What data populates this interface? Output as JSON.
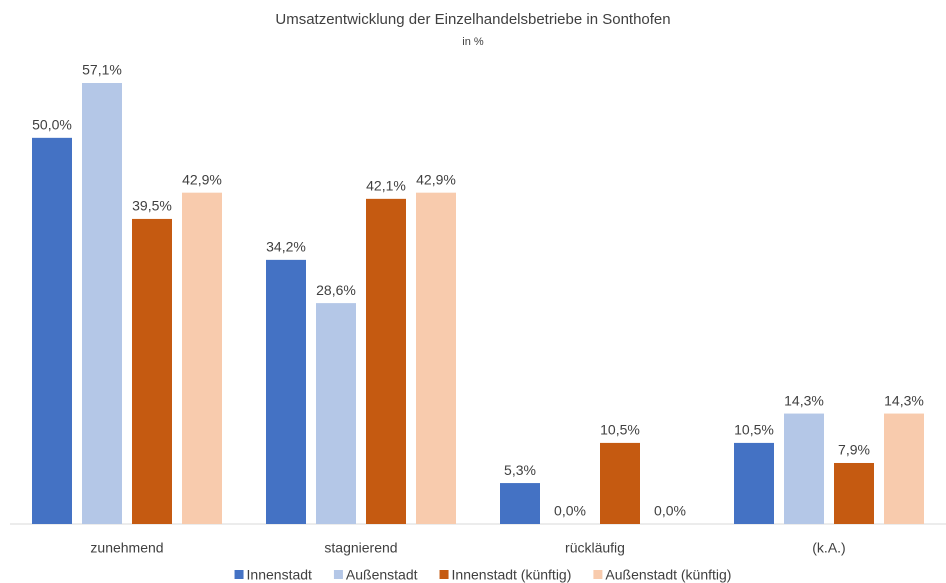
{
  "chart_data": {
    "type": "bar",
    "title": "Umsatzentwicklung der Einzelhandelsbetriebe in Sonthofen",
    "subtitle": "in %",
    "categories": [
      "zunehmend",
      "stagnierend",
      "rückläufig",
      "(k.A.)"
    ],
    "series": [
      {
        "name": "Innenstadt",
        "color": "#4472c4",
        "values": [
          50.0,
          34.2,
          5.3,
          10.5
        ],
        "value_labels": [
          "50,0%",
          "34,2%",
          "5,3%",
          "10,5%"
        ]
      },
      {
        "name": "Außenstadt",
        "color": "#b4c7e7",
        "values": [
          57.1,
          28.6,
          0.0,
          14.3
        ],
        "value_labels": [
          "57,1%",
          "28,6%",
          "0,0%",
          "14,3%"
        ]
      },
      {
        "name": "Innenstadt (künftig)",
        "color": "#c55a11",
        "values": [
          39.5,
          42.1,
          10.5,
          7.9
        ],
        "value_labels": [
          "39,5%",
          "42,1%",
          "10,5%",
          "7,9%"
        ]
      },
      {
        "name": "Außenstadt (künftig)",
        "color": "#f8cbad",
        "values": [
          42.9,
          42.9,
          0.0,
          14.3
        ],
        "value_labels": [
          "42,9%",
          "42,9%",
          "0,0%",
          "14,3%"
        ]
      }
    ],
    "legend": "bottom"
  }
}
